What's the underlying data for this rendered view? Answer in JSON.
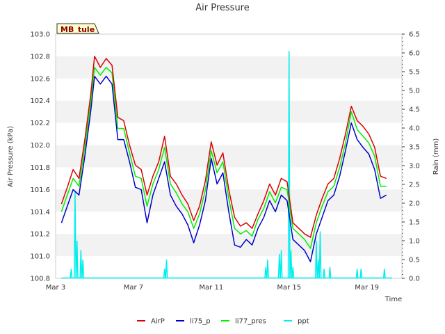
{
  "chart_data": {
    "type": "line",
    "title": "Air Pressure",
    "site_label": "MB_tule",
    "xlabel": "Time",
    "ylabel": "Air Pressure (kPa)",
    "y2label": "Rain (mm)",
    "x_ticks": [
      "Mar 3",
      "Mar 7",
      "Mar 11",
      "Mar 15",
      "Mar 19"
    ],
    "x_tick_days": [
      3,
      7,
      11,
      15,
      19
    ],
    "xlim": [
      3.0,
      20.8
    ],
    "ylim": [
      100.8,
      103.0
    ],
    "y_ticks": [
      "100.8",
      "101.0",
      "101.2",
      "101.4",
      "101.6",
      "101.8",
      "102.0",
      "102.2",
      "102.4",
      "102.6",
      "102.8",
      "103.0"
    ],
    "y2lim": [
      0.0,
      6.5
    ],
    "y2_ticks": [
      "0.0",
      "0.5",
      "1.0",
      "1.5",
      "2.0",
      "2.5",
      "3.0",
      "3.5",
      "4.0",
      "4.5",
      "5.0",
      "5.5",
      "6.0",
      "6.5"
    ],
    "grid": "horizontal-bands",
    "legend_position": "bottom",
    "series": [
      {
        "name": "AirP",
        "color": "#dd0000",
        "axis": "left",
        "x": [
          3.3,
          3.6,
          3.9,
          4.2,
          4.5,
          4.8,
          5.0,
          5.3,
          5.6,
          5.9,
          6.2,
          6.5,
          6.8,
          7.1,
          7.4,
          7.7,
          8.0,
          8.3,
          8.6,
          8.9,
          9.2,
          9.5,
          9.8,
          10.1,
          10.4,
          10.7,
          11.0,
          11.3,
          11.6,
          11.9,
          12.2,
          12.5,
          12.8,
          13.1,
          13.4,
          13.7,
          14.0,
          14.3,
          14.6,
          14.9,
          15.2,
          15.5,
          15.8,
          16.1,
          16.4,
          16.7,
          17.0,
          17.3,
          17.6,
          17.9,
          18.2,
          18.5,
          18.8,
          19.1,
          19.4,
          19.7,
          20.0,
          20.3,
          20.6
        ],
        "y": [
          101.47,
          101.62,
          101.78,
          101.7,
          102.05,
          102.45,
          102.8,
          102.7,
          102.78,
          102.72,
          102.25,
          102.22,
          102.0,
          101.82,
          101.78,
          101.55,
          101.72,
          101.85,
          102.08,
          101.72,
          101.65,
          101.55,
          101.47,
          101.32,
          101.45,
          101.68,
          102.03,
          101.82,
          101.93,
          101.6,
          101.35,
          101.27,
          101.3,
          101.25,
          101.38,
          101.5,
          101.65,
          101.55,
          101.7,
          101.67,
          101.3,
          101.25,
          101.2,
          101.17,
          101.37,
          101.52,
          101.65,
          101.7,
          101.88,
          102.1,
          102.35,
          102.22,
          102.17,
          102.1,
          101.98,
          101.72,
          101.7,
          null,
          null
        ]
      },
      {
        "name": "li75_p",
        "color": "#0000cc",
        "axis": "left",
        "x": [
          3.3,
          3.6,
          3.9,
          4.2,
          4.5,
          4.8,
          5.0,
          5.3,
          5.6,
          5.9,
          6.2,
          6.5,
          6.8,
          7.1,
          7.4,
          7.7,
          8.0,
          8.3,
          8.6,
          8.9,
          9.2,
          9.5,
          9.8,
          10.1,
          10.4,
          10.7,
          11.0,
          11.3,
          11.6,
          11.9,
          12.2,
          12.5,
          12.8,
          13.1,
          13.4,
          13.7,
          14.0,
          14.3,
          14.6,
          14.9,
          15.2,
          15.5,
          15.8,
          16.1,
          16.4,
          16.7,
          17.0,
          17.3,
          17.6,
          17.9,
          18.2,
          18.5,
          18.8,
          19.1,
          19.4,
          19.7,
          20.0,
          20.3,
          20.6
        ],
        "y": [
          101.3,
          101.45,
          101.6,
          101.55,
          101.9,
          102.3,
          102.62,
          102.55,
          102.62,
          102.55,
          102.05,
          102.05,
          101.85,
          101.62,
          101.6,
          101.3,
          101.55,
          101.7,
          101.85,
          101.55,
          101.45,
          101.38,
          101.28,
          101.12,
          101.28,
          101.5,
          101.88,
          101.65,
          101.75,
          101.4,
          101.1,
          101.08,
          101.15,
          101.1,
          101.25,
          101.35,
          101.5,
          101.4,
          101.55,
          101.5,
          101.15,
          101.1,
          101.05,
          100.95,
          101.2,
          101.35,
          101.5,
          101.55,
          101.72,
          101.95,
          102.2,
          102.05,
          101.98,
          101.92,
          101.78,
          101.52,
          101.55,
          null,
          null
        ]
      },
      {
        "name": "li77_pres",
        "color": "#00ee00",
        "axis": "left",
        "x": [
          3.3,
          3.6,
          3.9,
          4.2,
          4.5,
          4.8,
          5.0,
          5.3,
          5.6,
          5.9,
          6.2,
          6.5,
          6.8,
          7.1,
          7.4,
          7.7,
          8.0,
          8.3,
          8.6,
          8.9,
          9.2,
          9.5,
          9.8,
          10.1,
          10.4,
          10.7,
          11.0,
          11.3,
          11.6,
          11.9,
          12.2,
          12.5,
          12.8,
          13.1,
          13.4,
          13.7,
          14.0,
          14.3,
          14.6,
          14.9,
          15.2,
          15.5,
          15.8,
          16.1,
          16.4,
          16.7,
          17.0,
          17.3,
          17.6,
          17.9,
          18.2,
          18.5,
          18.8,
          19.1,
          19.4,
          19.7,
          20.0,
          20.3,
          20.6
        ],
        "y": [
          101.4,
          101.55,
          101.7,
          101.63,
          101.98,
          102.38,
          102.7,
          102.63,
          102.7,
          102.65,
          102.15,
          102.15,
          101.93,
          101.72,
          101.7,
          101.45,
          101.65,
          101.78,
          101.98,
          101.65,
          101.57,
          101.47,
          101.4,
          101.25,
          101.38,
          101.6,
          101.95,
          101.75,
          101.85,
          101.52,
          101.25,
          101.2,
          101.23,
          101.18,
          101.33,
          101.43,
          101.58,
          101.48,
          101.62,
          101.6,
          101.25,
          101.2,
          101.15,
          101.07,
          101.3,
          101.45,
          101.58,
          101.63,
          101.8,
          102.02,
          102.3,
          102.14,
          102.08,
          102.02,
          101.9,
          101.63,
          101.63,
          null,
          null
        ]
      },
      {
        "name": "ppt",
        "color": "#00eeee",
        "axis": "right",
        "x": [
          3.8,
          4.0,
          4.1,
          4.3,
          4.4,
          8.6,
          8.7,
          13.8,
          13.9,
          14.5,
          14.6,
          15.0,
          15.1,
          15.2,
          16.4,
          16.5,
          16.6,
          16.8,
          17.1,
          18.5,
          18.7,
          19.9
        ],
        "y": [
          0.25,
          2.3,
          1.0,
          0.75,
          0.5,
          0.25,
          0.5,
          0.3,
          0.5,
          0.65,
          0.75,
          6.05,
          0.75,
          0.3,
          1.0,
          0.5,
          1.25,
          0.25,
          0.3,
          0.25,
          0.25,
          0.25
        ]
      }
    ]
  }
}
